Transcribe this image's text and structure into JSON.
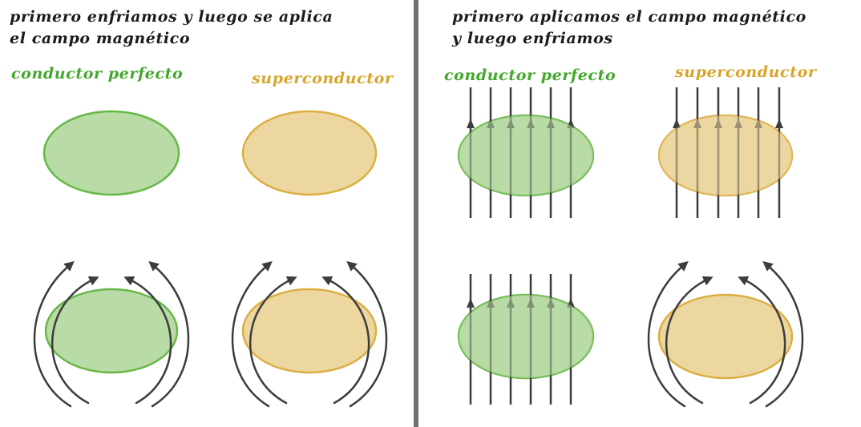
{
  "colors": {
    "green_label": "#43a72c",
    "yellow_label": "#d8a42c",
    "green_fill": "#b9dba6",
    "green_stroke": "#66b848",
    "yellow_fill": "#ecd7a0",
    "yellow_stroke": "#dcae42",
    "line": "#3c3c3c",
    "divider": "#6f6f6f"
  },
  "left": {
    "title_line1": "primero enfriamos y luego se aplica",
    "title_line2": "el campo magnético",
    "label_conductor": "conductor perfecto",
    "label_super": "superconductor"
  },
  "right": {
    "title_line1": "primero aplicamos el campo magnético",
    "title_line2": "y luego enfriamos",
    "label_conductor": "conductor perfecto",
    "label_super": "superconductor"
  }
}
